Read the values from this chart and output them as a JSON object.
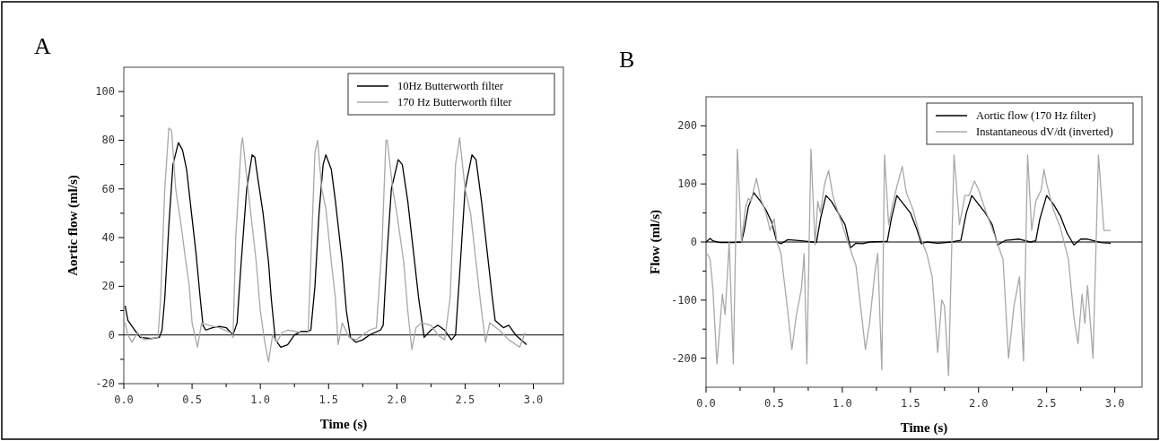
{
  "chart_data": [
    {
      "type": "line",
      "title": "A",
      "xlabel": "Time (s)",
      "ylabel": "Aortic flow (ml/s)",
      "xlim": [
        0,
        3.22
      ],
      "ylim": [
        -20,
        110
      ],
      "xticks": [
        {
          "value": 0,
          "label": "0.0"
        },
        {
          "value": 0.25,
          "label": null
        },
        {
          "value": 0.5,
          "label": "0.5"
        },
        {
          "value": 0.75,
          "label": null
        },
        {
          "value": 1,
          "label": "1.0"
        },
        {
          "value": 1.25,
          "label": null
        },
        {
          "value": 1.5,
          "label": "1.5"
        },
        {
          "value": 1.75,
          "label": null
        },
        {
          "value": 2,
          "label": "2.0"
        },
        {
          "value": 2.25,
          "label": null
        },
        {
          "value": 2.5,
          "label": "2.5"
        },
        {
          "value": 2.75,
          "label": null
        },
        {
          "value": 3,
          "label": "3.0"
        }
      ],
      "yticks": [
        -20,
        {
          "value": -10,
          "label": null
        },
        0,
        {
          "value": 10,
          "label": null
        },
        20,
        {
          "value": 30,
          "label": null
        },
        40,
        {
          "value": 50,
          "label": null
        },
        60,
        {
          "value": 70,
          "label": null
        },
        80,
        {
          "value": 90,
          "label": null
        },
        100
      ],
      "legend": "top right",
      "grid": false,
      "ref_lines": [
        {
          "axis": "y",
          "value": 0,
          "color": "#000000"
        }
      ],
      "series": [
        {
          "name": "10Hz Butterworth filter",
          "color": "#000000",
          "x": [
            0.01,
            0.03,
            0.08,
            0.12,
            0.2,
            0.26,
            0.28,
            0.3,
            0.33,
            0.36,
            0.4,
            0.43,
            0.46,
            0.5,
            0.53,
            0.56,
            0.58,
            0.6,
            0.65,
            0.7,
            0.75,
            0.8,
            0.83,
            0.86,
            0.9,
            0.94,
            0.96,
            0.98,
            1.02,
            1.06,
            1.08,
            1.11,
            1.15,
            1.2,
            1.25,
            1.3,
            1.35,
            1.37,
            1.4,
            1.43,
            1.46,
            1.48,
            1.52,
            1.55,
            1.6,
            1.63,
            1.66,
            1.7,
            1.75,
            1.8,
            1.88,
            1.9,
            1.93,
            1.96,
            2.01,
            2.04,
            2.08,
            2.12,
            2.16,
            2.2,
            2.25,
            2.3,
            2.35,
            2.4,
            2.43,
            2.46,
            2.5,
            2.55,
            2.58,
            2.62,
            2.66,
            2.7,
            2.72,
            2.78,
            2.82,
            2.87,
            2.95
          ],
          "values": [
            12,
            6,
            2,
            -1,
            -1.5,
            -1,
            2,
            15,
            45,
            70,
            79,
            76,
            68,
            48,
            33,
            15,
            4,
            2,
            3,
            3.5,
            3,
            0,
            5,
            30,
            60,
            74,
            73,
            65,
            50,
            30,
            15,
            -2,
            -5,
            -4,
            0,
            1.5,
            1.5,
            2,
            20,
            50,
            70,
            74,
            68,
            55,
            30,
            10,
            -1,
            -3,
            -2,
            0,
            2,
            4,
            35,
            60,
            72,
            70,
            55,
            35,
            15,
            -1,
            2,
            4,
            2,
            -2,
            0,
            25,
            60,
            74,
            72,
            55,
            35,
            15,
            6,
            3,
            4,
            0,
            -4
          ]
        },
        {
          "name": "170 Hz Butterworth filter",
          "color": "#a8a8a8",
          "x": [
            0.01,
            0.03,
            0.06,
            0.1,
            0.15,
            0.2,
            0.25,
            0.27,
            0.3,
            0.33,
            0.35,
            0.38,
            0.42,
            0.45,
            0.48,
            0.5,
            0.54,
            0.57,
            0.62,
            0.7,
            0.78,
            0.8,
            0.82,
            0.86,
            0.87,
            0.9,
            0.93,
            0.97,
            1.0,
            1.03,
            1.06,
            1.09,
            1.12,
            1.16,
            1.2,
            1.3,
            1.35,
            1.37,
            1.4,
            1.42,
            1.45,
            1.48,
            1.52,
            1.55,
            1.57,
            1.6,
            1.65,
            1.7,
            1.8,
            1.85,
            1.89,
            1.92,
            1.93,
            1.97,
            2.0,
            2.05,
            2.08,
            2.11,
            2.14,
            2.18,
            2.25,
            2.3,
            2.35,
            2.39,
            2.43,
            2.46,
            2.5,
            2.54,
            2.58,
            2.62,
            2.65,
            2.68,
            2.75,
            2.82,
            2.9,
            2.94
          ],
          "values": [
            5,
            0,
            -3,
            1,
            -2,
            -1.5,
            -1,
            15,
            60,
            85,
            84,
            60,
            45,
            32,
            20,
            5,
            -5,
            5,
            4,
            3,
            1,
            -1,
            40,
            78,
            81,
            65,
            50,
            30,
            10,
            -2,
            -11,
            0,
            -3,
            1,
            2,
            1,
            1,
            30,
            75,
            80,
            60,
            52,
            30,
            15,
            -4,
            5,
            -1,
            -2,
            2,
            3,
            35,
            80,
            80,
            60,
            50,
            30,
            10,
            -6,
            3,
            5,
            4,
            0,
            -2,
            15,
            70,
            81,
            60,
            50,
            30,
            10,
            -3,
            5,
            2,
            -2,
            -5,
            1
          ]
        }
      ]
    },
    {
      "type": "line",
      "title": "B",
      "xlabel": "Time (s)",
      "ylabel": "Flow (ml/s)",
      "xlim": [
        0,
        3.2
      ],
      "ylim": [
        -250,
        250
      ],
      "xticks": [
        {
          "value": 0,
          "label": "0.0"
        },
        {
          "value": 0.25,
          "label": null
        },
        {
          "value": 0.5,
          "label": "0.5"
        },
        {
          "value": 0.75,
          "label": null
        },
        {
          "value": 1,
          "label": "1.0"
        },
        {
          "value": 1.25,
          "label": null
        },
        {
          "value": 1.5,
          "label": "1.5"
        },
        {
          "value": 1.75,
          "label": null
        },
        {
          "value": 2,
          "label": "2.0"
        },
        {
          "value": 2.25,
          "label": null
        },
        {
          "value": 2.5,
          "label": "2.5"
        },
        {
          "value": 2.75,
          "label": null
        },
        {
          "value": 3,
          "label": "3.0"
        }
      ],
      "yticks": [
        -200,
        {
          "value": -150,
          "label": null
        },
        -100,
        {
          "value": -50,
          "label": null
        },
        0,
        {
          "value": 50,
          "label": null
        },
        100,
        {
          "value": 150,
          "label": null
        },
        200
      ],
      "legend": "top right",
      "grid": false,
      "ref_lines": [
        {
          "axis": "y",
          "value": 0,
          "color": "#000000"
        }
      ],
      "series": [
        {
          "name": "Aortic flow (170 Hz filter)",
          "color": "#000000",
          "x": [
            0.0,
            0.03,
            0.05,
            0.1,
            0.2,
            0.26,
            0.28,
            0.31,
            0.35,
            0.4,
            0.44,
            0.48,
            0.52,
            0.55,
            0.6,
            0.7,
            0.78,
            0.81,
            0.84,
            0.88,
            0.92,
            0.97,
            1.02,
            1.06,
            1.1,
            1.15,
            1.2,
            1.3,
            1.33,
            1.36,
            1.4,
            1.45,
            1.5,
            1.55,
            1.58,
            1.62,
            1.7,
            1.8,
            1.87,
            1.91,
            1.95,
            2.0,
            2.05,
            2.1,
            2.14,
            2.2,
            2.3,
            2.38,
            2.42,
            2.45,
            2.5,
            2.55,
            2.6,
            2.65,
            2.7,
            2.75,
            2.8,
            2.9,
            2.97
          ],
          "values": [
            0,
            6,
            2,
            -1,
            -1,
            0,
            20,
            60,
            85,
            70,
            55,
            35,
            0,
            -3,
            4,
            2,
            0,
            -1,
            40,
            80,
            70,
            50,
            30,
            -10,
            -2,
            -3,
            0,
            1,
            1,
            40,
            80,
            65,
            50,
            20,
            -3,
            0,
            -2,
            0,
            3,
            50,
            80,
            65,
            50,
            30,
            -5,
            3,
            5,
            0,
            2,
            40,
            80,
            65,
            45,
            15,
            -5,
            5,
            5,
            -1,
            -2
          ]
        },
        {
          "name": "Instantaneous dV/dt (inverted)",
          "color": "#a8a8a8",
          "x": [
            0.01,
            0.03,
            0.05,
            0.08,
            0.1,
            0.12,
            0.14,
            0.17,
            0.2,
            0.23,
            0.26,
            0.29,
            0.31,
            0.33,
            0.36,
            0.37,
            0.4,
            0.44,
            0.47,
            0.5,
            0.52,
            0.55,
            0.6,
            0.63,
            0.66,
            0.7,
            0.72,
            0.74,
            0.77,
            0.8,
            0.82,
            0.84,
            0.87,
            0.9,
            0.93,
            0.97,
            1.0,
            1.04,
            1.1,
            1.17,
            1.2,
            1.24,
            1.26,
            1.29,
            1.31,
            1.34,
            1.37,
            1.4,
            1.44,
            1.47,
            1.52,
            1.57,
            1.62,
            1.66,
            1.7,
            1.73,
            1.75,
            1.78,
            1.82,
            1.86,
            1.9,
            1.93,
            1.97,
            2.0,
            2.05,
            2.12,
            2.18,
            2.22,
            2.26,
            2.3,
            2.33,
            2.36,
            2.39,
            2.42,
            2.46,
            2.48,
            2.5,
            2.55,
            2.6,
            2.66,
            2.7,
            2.73,
            2.76,
            2.78,
            2.8,
            2.84,
            2.88,
            2.92,
            2.97
          ],
          "values": [
            -20,
            -30,
            -80,
            -210,
            -150,
            -90,
            -125,
            0,
            -210,
            160,
            0,
            60,
            75,
            70,
            100,
            110,
            75,
            50,
            20,
            40,
            0,
            -20,
            -120,
            -185,
            -130,
            -80,
            -20,
            -210,
            160,
            -5,
            70,
            50,
            100,
            123,
            80,
            50,
            30,
            0,
            -40,
            -185,
            -140,
            -50,
            -20,
            -220,
            150,
            30,
            65,
            95,
            130,
            85,
            55,
            10,
            -20,
            -60,
            -190,
            -100,
            -110,
            -230,
            150,
            30,
            80,
            80,
            105,
            90,
            55,
            10,
            -30,
            -200,
            -110,
            -60,
            -205,
            150,
            20,
            70,
            90,
            125,
            100,
            55,
            25,
            -30,
            -130,
            -175,
            -90,
            -140,
            -75,
            -200,
            150,
            20,
            20
          ]
        }
      ]
    }
  ]
}
